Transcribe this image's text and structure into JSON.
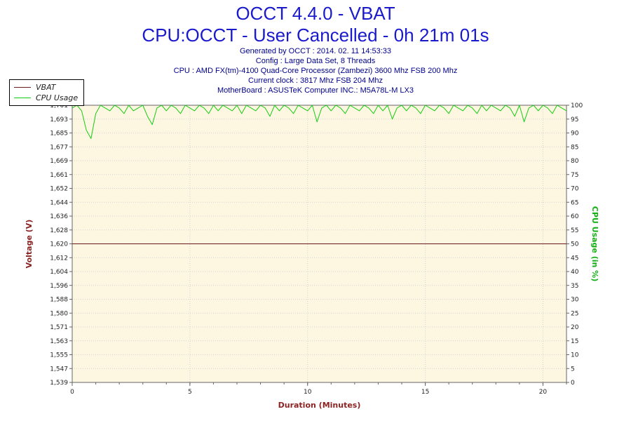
{
  "header": {
    "title": "OCCT 4.4.0 - VBAT",
    "subtitle": "CPU:OCCT - User Cancelled - 0h 21m 01s",
    "info_lines": [
      "Generated by OCCT : 2014. 02. 11 14:53:33",
      "Config : Large Data Set, 8 Threads",
      "CPU : AMD FX(tm)-4100 Quad-Core Processor (Zambezi) 3600 Mhz FSB 200 Mhz",
      "Current clock : 3817 Mhz FSB 204 Mhz",
      "MotherBoard : ASUSTeK Computer INC.: M5A78L-M LX3"
    ]
  },
  "legend": {
    "items": [
      {
        "label": "VBAT",
        "color": "#6b1a1a"
      },
      {
        "label": "CPU Usage",
        "color": "#16cd16"
      }
    ]
  },
  "colors": {
    "title_blue": "#1a1acd",
    "info_navy": "#00008b",
    "voltage_red": "#8b2323",
    "cpu_green": "#12b212",
    "vbat_line": "#6b1a1a",
    "cpu_line": "#16cd16",
    "plot_bg": "#fdf6e0",
    "grid": "#d4d4d4",
    "axis": "#666666",
    "tick_text": "#222222"
  },
  "chart_data": {
    "type": "line",
    "xlabel": "Duration (Minutes)",
    "ylabel_left": "Voltage (V)",
    "ylabel_right": "CPU Usage (in %)",
    "x_range": [
      0,
      21
    ],
    "x_ticks": [
      0,
      5,
      10,
      15,
      20
    ],
    "x_minor_tick_step": 1,
    "grid": true,
    "legend_position": "top-left",
    "left_axis": {
      "range": [
        1.539,
        1.701
      ],
      "tick_labels": [
        "1,539",
        "1,547",
        "1,555",
        "1,563",
        "1,571",
        "1,580",
        "1,588",
        "1,596",
        "1,604",
        "1,612",
        "1,620",
        "1,628",
        "1,636",
        "1,644",
        "1,652",
        "1,661",
        "1,669",
        "1,677",
        "1,685",
        "1,693",
        "1,701"
      ]
    },
    "right_axis": {
      "range": [
        0,
        100
      ],
      "ticks": [
        0,
        5,
        10,
        15,
        20,
        25,
        30,
        35,
        40,
        45,
        50,
        55,
        60,
        65,
        70,
        75,
        80,
        85,
        90,
        95,
        100
      ]
    },
    "series": [
      {
        "name": "VBAT",
        "axis": "left",
        "color": "#6b1a1a",
        "x": [
          0,
          21
        ],
        "values": [
          1.62,
          1.62
        ]
      },
      {
        "name": "CPU Usage",
        "axis": "right",
        "color": "#16cd16",
        "x_start": 0,
        "x_step": 0.2,
        "values": [
          99,
          100,
          98,
          91,
          88,
          97,
          100,
          99,
          98,
          100,
          99,
          97,
          100,
          98,
          99,
          100,
          96,
          93,
          99,
          100,
          98,
          100,
          99,
          97,
          100,
          99,
          98,
          100,
          99,
          97,
          100,
          98,
          100,
          99,
          98,
          100,
          97,
          100,
          99,
          98,
          100,
          99,
          96,
          100,
          98,
          100,
          99,
          97,
          100,
          99,
          98,
          100,
          94,
          99,
          100,
          98,
          100,
          99,
          97,
          100,
          99,
          98,
          100,
          99,
          97,
          100,
          98,
          100,
          95,
          99,
          100,
          98,
          100,
          99,
          97,
          100,
          99,
          98,
          100,
          99,
          97,
          100,
          99,
          98,
          100,
          99,
          97,
          100,
          98,
          100,
          99,
          98,
          100,
          99,
          96,
          100,
          94,
          99,
          100,
          98,
          100,
          99,
          97,
          100,
          99,
          98
        ]
      }
    ]
  }
}
